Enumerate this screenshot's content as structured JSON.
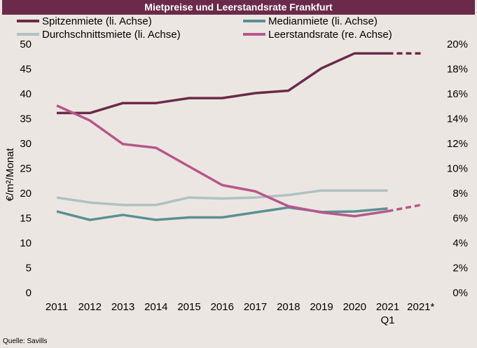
{
  "chart_data": {
    "type": "line",
    "title": "Mietpreise und Leerstandsrate Frankfurt",
    "source": "Quelle: Savills",
    "categories": [
      "2011",
      "2012",
      "2013",
      "2014",
      "2015",
      "2016",
      "2017",
      "2018",
      "2019",
      "2020",
      "2021 Q1",
      "2021*"
    ],
    "ylabel": "€/m²/Monat",
    "ylim": [
      0,
      50
    ],
    "y_ticks": [
      "0",
      "5",
      "10",
      "15",
      "20",
      "25",
      "30",
      "35",
      "40",
      "45",
      "50"
    ],
    "y2lim": [
      0,
      20
    ],
    "y2_ticks": [
      "0%",
      "2%",
      "4%",
      "6%",
      "8%",
      "10%",
      "12%",
      "14%",
      "16%",
      "18%",
      "20%"
    ],
    "grid": false,
    "legend_position": "top",
    "series": [
      {
        "name": "Spitzenmiete (li. Achse)",
        "axis": "left",
        "color": "#6b2a4a",
        "values": [
          36,
          36,
          38,
          38,
          39,
          39,
          40,
          40.5,
          45,
          48,
          48,
          48
        ],
        "dashed_from_index": 10
      },
      {
        "name": "Medianmiete (li. Achse)",
        "axis": "left",
        "color": "#5a9092",
        "values": [
          16.2,
          14.5,
          15.5,
          14.5,
          15,
          15,
          16,
          17,
          16.1,
          16.2,
          16.8,
          null
        ],
        "dashed_from_index": 99
      },
      {
        "name": "Durchschnittsmiete (li. Achse)",
        "axis": "left",
        "color": "#adc2c3",
        "values": [
          19,
          18,
          17.5,
          17.5,
          19,
          18.8,
          19,
          19.5,
          20.4,
          20.4,
          20.4,
          null
        ],
        "dashed_from_index": 99
      },
      {
        "name": "Leerstandsrate (re. Achse)",
        "axis": "right",
        "color": "#b8568c",
        "values": [
          15,
          13.8,
          11.9,
          11.6,
          10.1,
          8.6,
          8.1,
          6.9,
          6.4,
          6.1,
          6.5,
          7.0
        ],
        "dashed_from_index": 10
      }
    ]
  }
}
